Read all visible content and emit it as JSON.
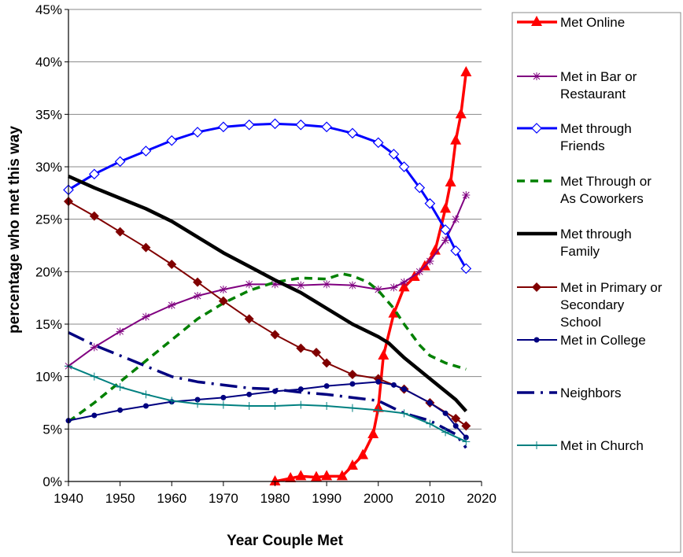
{
  "chart_data": {
    "type": "line",
    "title": "",
    "xlabel": "Year Couple Met",
    "ylabel": "percentage who met this way",
    "xlim": [
      1940,
      2020
    ],
    "ylim": [
      0,
      45
    ],
    "x_ticks": [
      "1940",
      "1950",
      "1960",
      "1970",
      "1980",
      "1990",
      "2000",
      "2010",
      "2020"
    ],
    "y_ticks": [
      "0%",
      "5%",
      "10%",
      "15%",
      "20%",
      "25%",
      "30%",
      "35%",
      "40%",
      "45%"
    ],
    "grid": "horizontal",
    "legend_position": "right",
    "series": [
      {
        "name": "Met Online",
        "color": "#ff0000",
        "marker": "triangle",
        "dash": "solid",
        "x": [
          1980,
          1983,
          1985,
          1988,
          1990,
          1993,
          1995,
          1997,
          1999,
          2000,
          2001,
          2003,
          2005,
          2007,
          2009,
          2011,
          2013,
          2014,
          2015,
          2016,
          2017
        ],
        "y": [
          0,
          0.3,
          0.5,
          0.4,
          0.5,
          0.5,
          1.5,
          2.5,
          4.5,
          7,
          12,
          16,
          18.5,
          19.5,
          20.5,
          22,
          26,
          28.5,
          32.5,
          35,
          39
        ]
      },
      {
        "name": "Met in Bar or Restaurant",
        "color": "#800080",
        "marker": "asterisk",
        "dash": "solid",
        "x": [
          1940,
          1945,
          1950,
          1955,
          1960,
          1965,
          1970,
          1975,
          1980,
          1985,
          1990,
          1995,
          2000,
          2003,
          2005,
          2008,
          2010,
          2013,
          2015,
          2017
        ],
        "y": [
          11,
          12.8,
          14.3,
          15.7,
          16.8,
          17.7,
          18.3,
          18.8,
          18.8,
          18.7,
          18.8,
          18.7,
          18.3,
          18.5,
          19,
          20,
          21,
          23,
          25,
          27.3
        ]
      },
      {
        "name": "Met through Friends",
        "color": "#0000ff",
        "marker": "diamond",
        "dash": "solid",
        "x": [
          1940,
          1945,
          1950,
          1955,
          1960,
          1965,
          1970,
          1975,
          1980,
          1985,
          1990,
          1995,
          2000,
          2003,
          2005,
          2008,
          2010,
          2013,
          2015,
          2017
        ],
        "y": [
          27.8,
          29.3,
          30.5,
          31.5,
          32.5,
          33.3,
          33.8,
          34,
          34.1,
          34,
          33.8,
          33.2,
          32.3,
          31.2,
          30,
          28,
          26.5,
          24,
          22,
          20.3
        ]
      },
      {
        "name": "Met Through or As Coworkers",
        "color": "#008000",
        "marker": "none",
        "dash": "dashed",
        "x": [
          1940,
          1945,
          1950,
          1955,
          1960,
          1965,
          1970,
          1975,
          1980,
          1985,
          1990,
          1993,
          1995,
          1998,
          2000,
          2003,
          2005,
          2008,
          2010,
          2013,
          2017
        ],
        "y": [
          5.7,
          7.5,
          9.5,
          11.5,
          13.5,
          15.5,
          17,
          18.2,
          19,
          19.4,
          19.3,
          19.8,
          19.6,
          19,
          18.2,
          16.5,
          15,
          13,
          12,
          11.3,
          10.7
        ]
      },
      {
        "name": "Met through Family",
        "color": "#000000",
        "marker": "none",
        "dash": "solid",
        "x": [
          1940,
          1945,
          1950,
          1955,
          1960,
          1965,
          1970,
          1975,
          1980,
          1985,
          1990,
          1995,
          2000,
          2002,
          2005,
          2010,
          2015,
          2017
        ],
        "y": [
          29.1,
          28,
          27,
          26,
          24.8,
          23.3,
          21.8,
          20.5,
          19.2,
          18,
          16.5,
          15,
          13.8,
          13.2,
          11.8,
          9.8,
          7.8,
          6.7
        ]
      },
      {
        "name": "Met in Primary or Secondary School",
        "color": "#800000",
        "marker": "diamond-filled",
        "dash": "solid",
        "x": [
          1940,
          1945,
          1950,
          1955,
          1960,
          1965,
          1970,
          1975,
          1980,
          1985,
          1988,
          1990,
          1995,
          2000,
          2005,
          2010,
          2015,
          2017
        ],
        "y": [
          26.7,
          25.3,
          23.8,
          22.3,
          20.7,
          19,
          17.2,
          15.5,
          14,
          12.7,
          12.3,
          11.3,
          10.2,
          9.8,
          8.8,
          7.5,
          6,
          5.3
        ]
      },
      {
        "name": "Met in College",
        "color": "#000080",
        "marker": "circle",
        "dash": "solid",
        "x": [
          1940,
          1945,
          1950,
          1955,
          1960,
          1965,
          1970,
          1975,
          1980,
          1985,
          1990,
          1995,
          2000,
          2003,
          2005,
          2010,
          2013,
          2015,
          2017
        ],
        "y": [
          5.8,
          6.3,
          6.8,
          7.2,
          7.6,
          7.8,
          8,
          8.3,
          8.6,
          8.8,
          9.1,
          9.3,
          9.5,
          9.2,
          8.8,
          7.5,
          6.5,
          5.3,
          4.2
        ]
      },
      {
        "name": "Neighbors",
        "color": "#000080",
        "marker": "none",
        "dash": "dashdot",
        "x": [
          1940,
          1945,
          1950,
          1955,
          1960,
          1965,
          1970,
          1975,
          1980,
          1985,
          1990,
          1995,
          2000,
          2005,
          2010,
          2015,
          2017
        ],
        "y": [
          14.2,
          13,
          12,
          11,
          10,
          9.5,
          9.2,
          8.9,
          8.8,
          8.5,
          8.3,
          8,
          7.7,
          6.5,
          5.8,
          4.5,
          3.2
        ]
      },
      {
        "name": "Met in Church",
        "color": "#008080",
        "marker": "plus",
        "dash": "solid",
        "x": [
          1940,
          1945,
          1950,
          1955,
          1960,
          1965,
          1970,
          1975,
          1980,
          1985,
          1990,
          1995,
          2000,
          2005,
          2010,
          2013,
          2017
        ],
        "y": [
          11,
          10,
          9,
          8.3,
          7.7,
          7.4,
          7.3,
          7.2,
          7.2,
          7.3,
          7.2,
          7,
          6.8,
          6.5,
          5.5,
          4.7,
          3.8
        ]
      }
    ]
  },
  "legend": {
    "items": [
      {
        "lines": [
          "Met Online"
        ]
      },
      {
        "lines": [
          "Met in Bar or",
          "Restaurant"
        ]
      },
      {
        "lines": [
          "Met through",
          "Friends"
        ]
      },
      {
        "lines": [
          "Met Through or",
          "As Coworkers"
        ]
      },
      {
        "lines": [
          "Met through",
          "Family"
        ]
      },
      {
        "lines": [
          "Met in Primary or",
          "Secondary",
          "School"
        ]
      },
      {
        "lines": [
          "Met in College"
        ]
      },
      {
        "lines": [
          "Neighbors"
        ]
      },
      {
        "lines": [
          "Met in Church"
        ]
      }
    ]
  }
}
